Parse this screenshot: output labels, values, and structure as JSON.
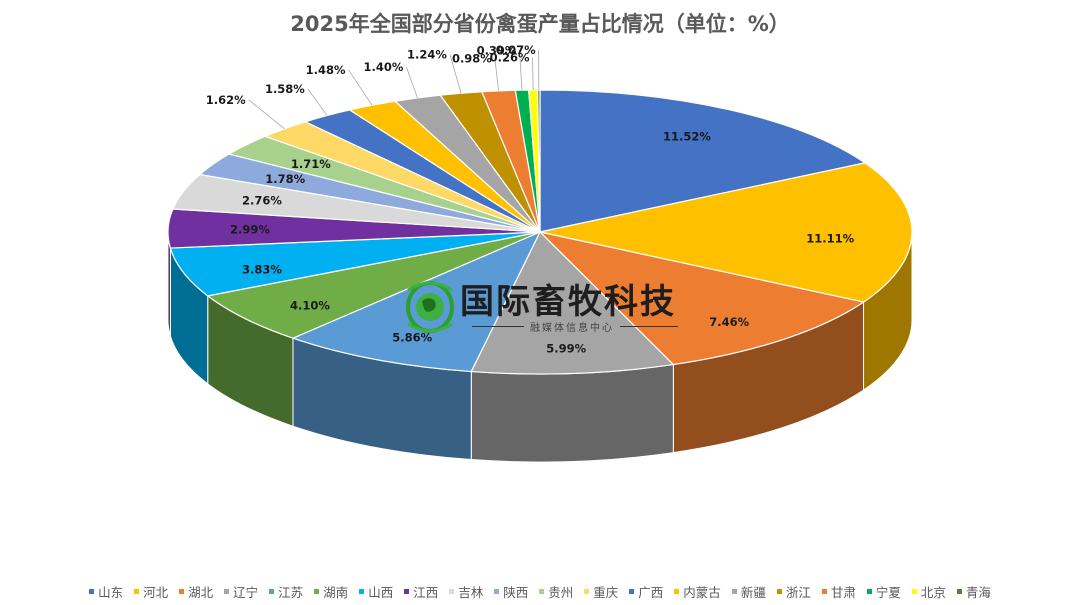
{
  "title": "2025年全国部分省份禽蛋产量占比情况（单位：%）",
  "watermark": {
    "text": "国际畜牧科技",
    "subtitle": "融媒体信息中心"
  },
  "chart_data": {
    "type": "pie",
    "title": "2025年全国部分省份禽蛋产量占比情况（单位：%）",
    "legend_position": "bottom",
    "slices": [
      {
        "name": "山东",
        "value": 11.52,
        "label": "11.52%",
        "color": "#4472C4"
      },
      {
        "name": "河北",
        "value": 11.11,
        "label": "11.11%",
        "color": "#FFC000"
      },
      {
        "name": "湖北",
        "value": 7.46,
        "label": "7.46%",
        "color": "#ED7D31"
      },
      {
        "name": "辽宁",
        "value": 5.99,
        "label": "5.99%",
        "color": "#A5A5A5"
      },
      {
        "name": "江苏",
        "value": 5.86,
        "label": "5.86%",
        "color": "#5B9BD5"
      },
      {
        "name": "湖南",
        "value": 4.1,
        "label": "4.10%",
        "color": "#70AD47"
      },
      {
        "name": "山西",
        "value": 3.83,
        "label": "3.83%",
        "color": "#00B0F0"
      },
      {
        "name": "江西",
        "value": 2.99,
        "label": "2.99%",
        "color": "#7030A0"
      },
      {
        "name": "吉林",
        "value": 2.76,
        "label": "2.76%",
        "color": "#D9D9D9"
      },
      {
        "name": "陕西",
        "value": 1.78,
        "label": "1.78%",
        "color": "#8EA9DB"
      },
      {
        "name": "贵州",
        "value": 1.71,
        "label": "1.71%",
        "color": "#A9D18E"
      },
      {
        "name": "重庆",
        "value": 1.62,
        "label": "1.62%",
        "color": "#FFD966"
      },
      {
        "name": "广西",
        "value": 1.58,
        "label": "1.58%",
        "color": "#4472C4"
      },
      {
        "name": "内蒙古",
        "value": 1.48,
        "label": "1.48%",
        "color": "#FFC000"
      },
      {
        "name": "新疆",
        "value": 1.4,
        "label": "1.40%",
        "color": "#A5A5A5"
      },
      {
        "name": "浙江",
        "value": 1.24,
        "label": "1.24%",
        "color": "#BF9000"
      },
      {
        "name": "甘肃",
        "value": 0.98,
        "label": "0.98%",
        "color": "#ED7D31"
      },
      {
        "name": "宁夏",
        "value": 0.39,
        "label": "0.39%",
        "color": "#00B050"
      },
      {
        "name": "北京",
        "value": 0.26,
        "label": "0.26%",
        "color": "#FFFF00"
      },
      {
        "name": "青海",
        "value": 0.07,
        "label": "0.07%",
        "color": "#548235"
      }
    ]
  }
}
